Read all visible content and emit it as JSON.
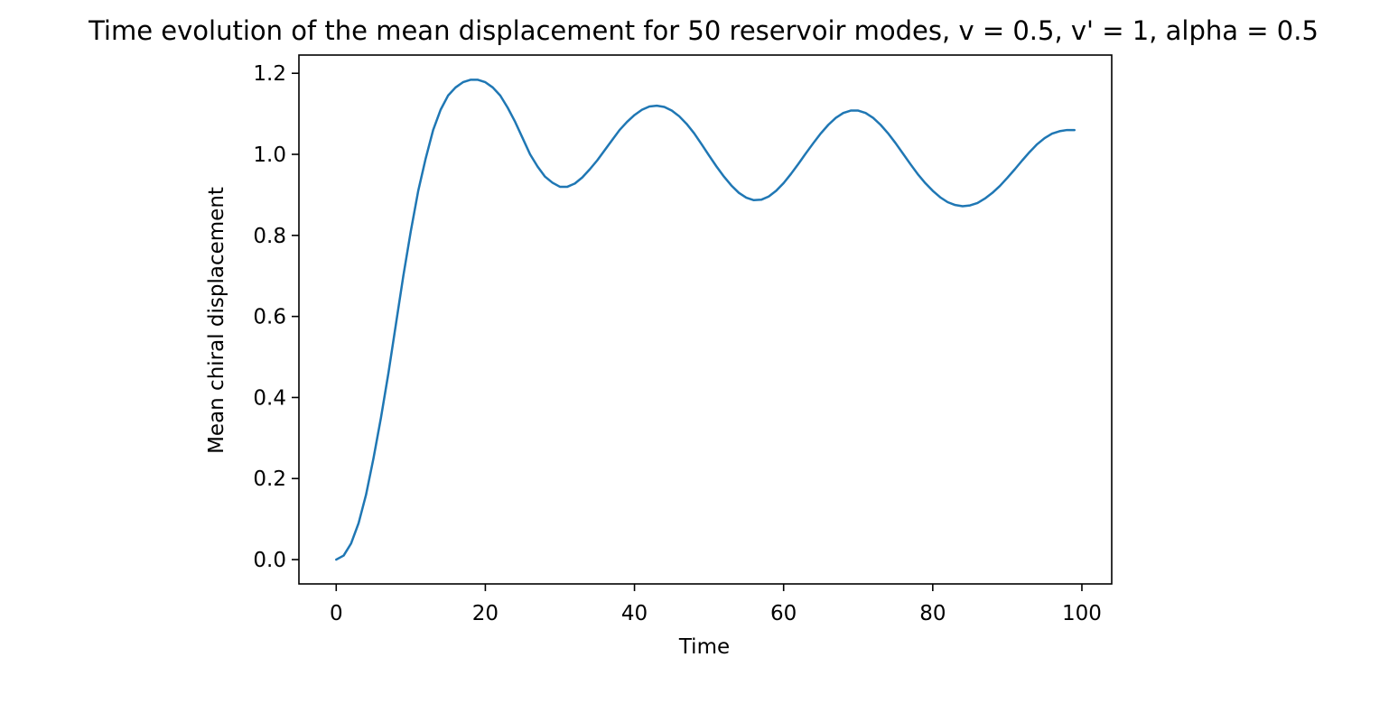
{
  "chart_data": {
    "type": "line",
    "title": "Time evolution of the mean displacement for 50 reservoir modes, v = 0.5, v' = 1, alpha = 0.5",
    "xlabel": "Time",
    "ylabel": "Mean chiral displacement",
    "xlim": [
      -5,
      104
    ],
    "ylim": [
      -0.06,
      1.245
    ],
    "xticks": [
      0,
      20,
      40,
      60,
      80,
      100
    ],
    "xtick_labels": [
      "0",
      "20",
      "40",
      "60",
      "80",
      "100"
    ],
    "yticks": [
      0.0,
      0.2,
      0.4,
      0.6,
      0.8,
      1.0,
      1.2
    ],
    "ytick_labels": [
      "0.0",
      "0.2",
      "0.4",
      "0.6",
      "0.8",
      "1.0",
      "1.2"
    ],
    "grid": false,
    "line_color": "#1f77b4",
    "series": [
      {
        "x": [
          0,
          1,
          2,
          3,
          4,
          5,
          6,
          7,
          8,
          9,
          10,
          11,
          12,
          13,
          14,
          15,
          16,
          17,
          18,
          19,
          20,
          21,
          22,
          23,
          24,
          25,
          26,
          27,
          28,
          29,
          30,
          31,
          32,
          33,
          34,
          35,
          36,
          37,
          38,
          39,
          40,
          41,
          42,
          43,
          44,
          45,
          46,
          47,
          48,
          49,
          50,
          51,
          52,
          53,
          54,
          55,
          56,
          57,
          58,
          59,
          60,
          61,
          62,
          63,
          64,
          65,
          66,
          67,
          68,
          69,
          70,
          71,
          72,
          73,
          74,
          75,
          76,
          77,
          78,
          79,
          80,
          81,
          82,
          83,
          84,
          85,
          86,
          87,
          88,
          89,
          90,
          91,
          92,
          93,
          94,
          95,
          96,
          97,
          98,
          99
        ],
        "y": [
          0.0,
          0.01,
          0.04,
          0.09,
          0.16,
          0.25,
          0.35,
          0.46,
          0.58,
          0.7,
          0.81,
          0.91,
          0.99,
          1.06,
          1.11,
          1.145,
          1.165,
          1.178,
          1.184,
          1.184,
          1.178,
          1.165,
          1.145,
          1.115,
          1.08,
          1.04,
          1.0,
          0.97,
          0.945,
          0.93,
          0.92,
          0.92,
          0.928,
          0.943,
          0.963,
          0.985,
          1.01,
          1.035,
          1.06,
          1.08,
          1.097,
          1.11,
          1.118,
          1.12,
          1.117,
          1.108,
          1.094,
          1.075,
          1.052,
          1.025,
          0.997,
          0.97,
          0.945,
          0.923,
          0.905,
          0.893,
          0.887,
          0.888,
          0.896,
          0.91,
          0.929,
          0.952,
          0.977,
          1.003,
          1.028,
          1.052,
          1.073,
          1.09,
          1.102,
          1.108,
          1.108,
          1.102,
          1.09,
          1.073,
          1.052,
          1.028,
          1.002,
          0.976,
          0.951,
          0.929,
          0.91,
          0.894,
          0.882,
          0.875,
          0.872,
          0.874,
          0.88,
          0.891,
          0.905,
          0.922,
          0.942,
          0.963,
          0.985,
          1.006,
          1.025,
          1.04,
          1.051,
          1.057,
          1.06,
          1.06
        ]
      }
    ]
  }
}
